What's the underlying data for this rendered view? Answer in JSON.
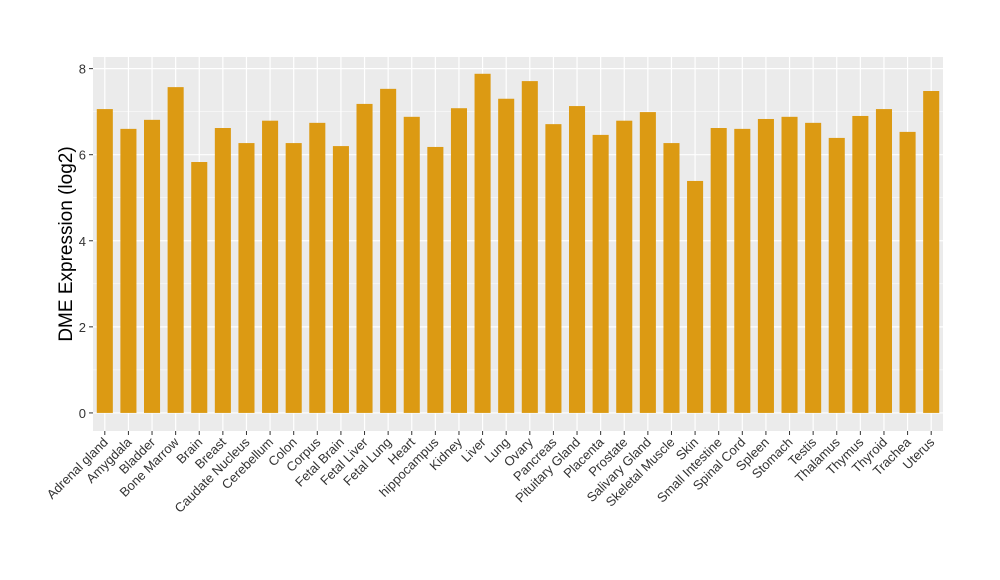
{
  "chart_data": {
    "type": "bar",
    "title": "",
    "xlabel": "",
    "ylabel": "DME Expression (log2)",
    "ylim": [
      -0.42,
      8.27
    ],
    "yticks": [
      0,
      2,
      4,
      6,
      8
    ],
    "grid": true,
    "bar_color": "#DC9A13",
    "panel_color": "#EBEBEB",
    "categories": [
      "Adrenal gland",
      "Amygdala",
      "Bladder",
      "Bone Marrow",
      "Brain",
      "Breast",
      "Caudate Nucleus",
      "Cerebellum",
      "Colon",
      "Corpus",
      "Fetal Brain",
      "Fetal Liver",
      "Fetal Lung",
      "Heart",
      "hippocampus",
      "Kidney",
      "Liver",
      "Lung",
      "Ovary",
      "Pancreas",
      "Pituitary Gland",
      "Placenta",
      "Prostate",
      "Salivary Gland",
      "Skeletal Muscle",
      "Skin",
      "Small Intestine",
      "Spinal Cord",
      "Spleen",
      "Stomach",
      "Testis",
      "Thalamus",
      "Thymus",
      "Thyroid",
      "Trachea",
      "Uterus"
    ],
    "values": [
      7.06,
      6.6,
      6.81,
      7.57,
      5.83,
      6.62,
      6.27,
      6.79,
      6.27,
      6.74,
      6.2,
      7.18,
      7.53,
      6.88,
      6.18,
      7.08,
      7.88,
      7.3,
      7.71,
      6.71,
      7.13,
      6.46,
      6.79,
      6.99,
      6.27,
      5.39,
      6.62,
      6.6,
      6.83,
      6.88,
      6.74,
      6.39,
      6.9,
      7.06,
      6.53,
      7.48
    ]
  }
}
